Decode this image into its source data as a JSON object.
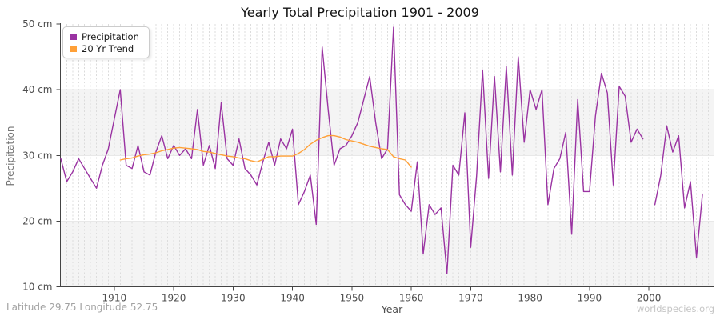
{
  "footer": {
    "left": "Latitude 29.75 Longitude 52.75",
    "right": "worldspecies.org"
  },
  "chart_data": {
    "type": "line",
    "title": "Yearly Total Precipitation 1901 - 2009",
    "xlabel": "Year",
    "ylabel": "Precipitation",
    "x_range": [
      1901,
      2009
    ],
    "ylim": [
      10,
      50
    ],
    "y_unit": "cm",
    "y_ticks": [
      50,
      40,
      30,
      20,
      10
    ],
    "x_ticks": [
      1910,
      1920,
      1930,
      1940,
      1950,
      1960,
      1970,
      1980,
      1990,
      2000
    ],
    "grid": "yearly vertical dashed lines, alternating horizontal bands",
    "legend_position": "top-left",
    "note": "Precipitation value for year 2000 is missing (gap in line)",
    "series": [
      {
        "name": "Precipitation",
        "color": "#9A33A2",
        "start_year": 1901,
        "values": [
          29.5,
          26,
          27.5,
          29.5,
          28,
          26.5,
          25,
          28.5,
          31,
          35.5,
          40,
          28.5,
          28,
          31.5,
          27.5,
          27,
          30.5,
          33,
          29.5,
          31.5,
          30,
          31,
          29.5,
          37,
          28.5,
          31.5,
          28,
          38,
          29.5,
          28.5,
          32.5,
          28,
          27,
          25.5,
          29,
          32,
          28.5,
          32.5,
          31,
          34,
          22.5,
          24.5,
          27,
          19.5,
          46.5,
          37,
          28.5,
          31,
          31.5,
          33,
          35,
          38.5,
          42,
          35,
          29.5,
          31,
          49.5,
          24,
          22.5,
          21.5,
          29,
          15,
          22.5,
          21,
          22,
          12,
          28.5,
          27,
          36.5,
          16,
          27,
          43,
          26.5,
          42,
          27.5,
          43.5,
          27,
          45,
          32,
          40,
          37,
          40,
          22.5,
          28,
          29.5,
          33.5,
          18,
          38.5,
          24.5,
          24.5,
          36,
          42.5,
          39.5,
          25.5,
          40.5,
          39,
          32,
          34,
          32.5,
          null,
          22.5,
          27,
          34.5,
          30.5,
          33,
          22,
          26,
          14.5,
          24
        ]
      },
      {
        "name": "20 Yr Trend",
        "color": "#FFA037",
        "start_year": 1911,
        "values": [
          29.3,
          29.5,
          29.6,
          29.9,
          30.1,
          30.2,
          30.4,
          30.7,
          30.9,
          31.1,
          31.2,
          31.1,
          31.0,
          30.9,
          30.6,
          30.5,
          30.3,
          30.1,
          29.9,
          29.8,
          29.6,
          29.5,
          29.2,
          29.0,
          29.4,
          29.8,
          29.8,
          29.9,
          29.9,
          29.9,
          30.3,
          30.9,
          31.7,
          32.3,
          32.7,
          33.0,
          33.0,
          32.8,
          32.4,
          32.2,
          32.0,
          31.7,
          31.4,
          31.2,
          31.0,
          30.9,
          29.8,
          29.5,
          29.3,
          28.2
        ]
      }
    ]
  }
}
